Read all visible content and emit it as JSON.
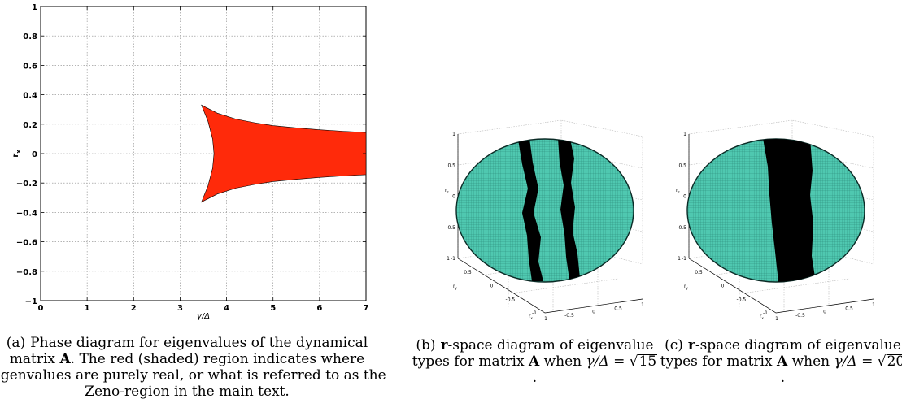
{
  "panel_a": {
    "chart_data": {
      "type": "area",
      "xlabel": "γ/Δ",
      "ylabel": "r",
      "ylabel_sub": "x",
      "xlim": [
        0,
        7
      ],
      "ylim": [
        -1,
        1
      ],
      "xticks": [
        "0",
        "1",
        "2",
        "3",
        "4",
        "5",
        "6",
        "7"
      ],
      "yticks": [
        "1",
        "0.8",
        "0.6",
        "0.4",
        "0.2",
        "0",
        "−0.2",
        "−0.4",
        "−0.6",
        "−0.8",
        "−1"
      ],
      "grid": true,
      "fill_color": "#ff2a0a",
      "region_upper": [
        [
          3.46,
          0.33
        ],
        [
          3.8,
          0.275
        ],
        [
          4.2,
          0.235
        ],
        [
          4.6,
          0.21
        ],
        [
          5.0,
          0.19
        ],
        [
          5.5,
          0.175
        ],
        [
          6.0,
          0.162
        ],
        [
          6.5,
          0.152
        ],
        [
          7.0,
          0.143
        ]
      ],
      "region_lower": [
        [
          3.46,
          -0.33
        ],
        [
          3.8,
          -0.275
        ],
        [
          4.2,
          -0.235
        ],
        [
          4.6,
          -0.21
        ],
        [
          5.0,
          -0.19
        ],
        [
          5.5,
          -0.175
        ],
        [
          6.0,
          -0.162
        ],
        [
          6.5,
          -0.152
        ],
        [
          7.0,
          -0.143
        ]
      ],
      "cusp": [
        [
          3.46,
          0.33
        ],
        [
          3.6,
          0.22
        ],
        [
          3.7,
          0.1
        ],
        [
          3.73,
          0
        ],
        [
          3.7,
          -0.1
        ],
        [
          3.6,
          -0.22
        ],
        [
          3.46,
          -0.33
        ]
      ]
    }
  },
  "panel_b": {
    "axis_labels": {
      "z": "r",
      "z_sub": "z",
      "y": "r",
      "y_sub": "y",
      "x": "r",
      "x_sub": "x"
    },
    "z_ticks": [
      "1",
      "0.5",
      "0",
      "-0.5",
      "-1"
    ],
    "y_ticks": [
      "1",
      "0.5",
      "0",
      "-0.5",
      "-1"
    ],
    "x_ticks": [
      "-1",
      "-0.5",
      "0",
      "0.5",
      "1"
    ],
    "sphere_color": "#4fc8b0",
    "band_color": "#000000"
  },
  "panel_c": {
    "axis_labels": {
      "z": "r",
      "z_sub": "z",
      "y": "r",
      "y_sub": "y",
      "x": "r",
      "x_sub": "x"
    },
    "z_ticks": [
      "1",
      "0.5",
      "0",
      "-0.5",
      "-1"
    ],
    "y_ticks": [
      "1",
      "0.5",
      "0",
      "-0.5",
      "-1"
    ],
    "x_ticks": [
      "-1",
      "-0.5",
      "0",
      "0.5",
      "1"
    ],
    "sphere_color": "#4fc8b0",
    "band_color": "#000000"
  },
  "captions": {
    "a": {
      "label": "(a)",
      "text1": "Phase diagram for eigenvalues of the dynamical matrix ",
      "bold": "A",
      "text2": ". The red (shaded) region indicates where eigenvalues are purely real, or what is referred to as the Zeno-region in the main text."
    },
    "b": {
      "label": "(b)",
      "bold_r": "r",
      "text1": "-space diagram of eigenvalue types for matrix ",
      "bold_A": "A",
      "when": " when ",
      "math": "γ/Δ = ",
      "sqrt": "15",
      "end": "."
    },
    "c": {
      "label": "(c)",
      "bold_r": "r",
      "text1": "-space diagram of eigenvalue types for matrix ",
      "bold_A": "A",
      "when": " when ",
      "math": "γ/Δ = ",
      "sqrt": "20",
      "end": "."
    }
  }
}
